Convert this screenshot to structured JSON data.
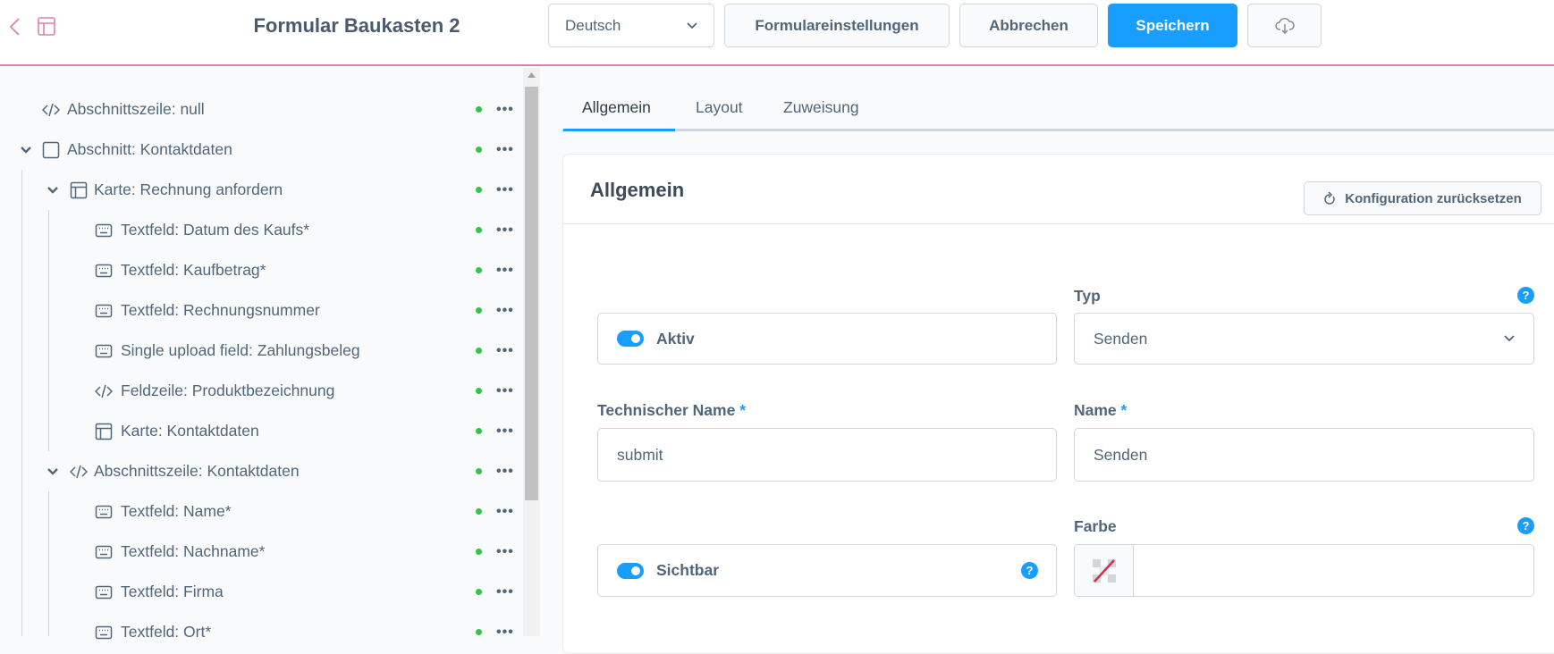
{
  "header": {
    "title": "Formular Baukasten 2",
    "language_select": "Deutsch",
    "form_settings_label": "Formulareinstellungen",
    "cancel_label": "Abbrechen",
    "save_label": "Speichern",
    "accent_color": "#e07fb4",
    "primary_color": "#189eff"
  },
  "sidebar": {
    "items": [
      {
        "label": "Abschnittszeile: null",
        "icon": "code-icon",
        "level": 0,
        "expandable": false
      },
      {
        "label": "Abschnitt: Kontaktdaten",
        "icon": "square-icon",
        "level": 0,
        "expandable": true
      },
      {
        "label": "Karte: Rechnung anfordern",
        "icon": "layout-icon",
        "level": 1,
        "expandable": true
      },
      {
        "label": "Textfeld: Datum des Kaufs*",
        "icon": "keyboard-icon",
        "level": 2,
        "expandable": false
      },
      {
        "label": "Textfeld: Kaufbetrag*",
        "icon": "keyboard-icon",
        "level": 2,
        "expandable": false
      },
      {
        "label": "Textfeld: Rechnungsnummer",
        "icon": "keyboard-icon",
        "level": 2,
        "expandable": false
      },
      {
        "label": "Single upload field: Zahlungsbeleg",
        "icon": "keyboard-icon",
        "level": 2,
        "expandable": false
      },
      {
        "label": "Feldzeile: Produktbezeichnung",
        "icon": "code-icon",
        "level": 2,
        "expandable": false
      },
      {
        "label": "Karte: Kontaktdaten",
        "icon": "layout-icon",
        "level": 2,
        "expandable": false
      },
      {
        "label": "Abschnittszeile: Kontaktdaten",
        "icon": "code-icon",
        "level": 1,
        "expandable": true
      },
      {
        "label": "Textfeld: Name*",
        "icon": "keyboard-icon",
        "level": 2,
        "expandable": false
      },
      {
        "label": "Textfeld: Nachname*",
        "icon": "keyboard-icon",
        "level": 2,
        "expandable": false
      },
      {
        "label": "Textfeld: Firma",
        "icon": "keyboard-icon",
        "level": 2,
        "expandable": false
      },
      {
        "label": "Textfeld: Ort*",
        "icon": "keyboard-icon",
        "level": 2,
        "expandable": false
      }
    ],
    "status_color": "#37c24f",
    "more_label": "•••"
  },
  "main": {
    "tabs": [
      {
        "label": "Allgemein",
        "active": true
      },
      {
        "label": "Layout",
        "active": false
      },
      {
        "label": "Zuweisung",
        "active": false
      }
    ],
    "card": {
      "title": "Allgemein",
      "reset_label": "Konfiguration zurücksetzen",
      "aktiv": {
        "label": "Aktiv",
        "checked": true
      },
      "typ": {
        "label": "Typ",
        "value": "Senden"
      },
      "technical_name": {
        "label": "Technischer Name",
        "required": "*",
        "value": "submit"
      },
      "name": {
        "label": "Name",
        "required": "*",
        "value": "Senden"
      },
      "sichtbar": {
        "label": "Sichtbar",
        "checked": true
      },
      "farbe": {
        "label": "Farbe",
        "value": ""
      },
      "help_label": "?"
    }
  }
}
